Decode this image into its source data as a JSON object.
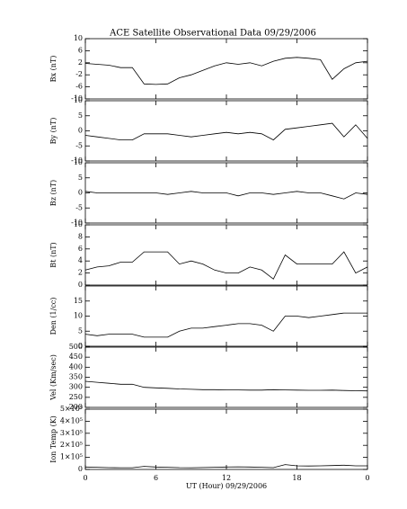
{
  "chart_data": [
    {
      "type": "line",
      "title": "ACE Satellite Observational Data   09/29/2006",
      "ylabel": "Bx (nT)",
      "color": "#000000",
      "ylim": [
        -10,
        10
      ],
      "yticks": [
        -10,
        -6,
        -2,
        2,
        6,
        10
      ],
      "values": [
        1.8,
        1.5,
        1.2,
        0.4,
        0.4,
        -5,
        -5.2,
        -5,
        -3,
        -2,
        -0.5,
        1,
        2,
        1.5,
        2,
        1,
        2.5,
        3.5,
        3.8,
        3.5,
        3,
        -3.5,
        0,
        2,
        2.5
      ]
    },
    {
      "type": "line",
      "ylabel": "By (nT)",
      "color": "#000000",
      "ylim": [
        -10,
        10
      ],
      "yticks": [
        -10,
        -5,
        0,
        5,
        10
      ],
      "values": [
        -1.5,
        -2,
        -2.5,
        -3,
        -3,
        -1,
        -1,
        -1,
        -1.5,
        -2,
        -1.5,
        -1,
        -0.5,
        -1,
        -0.5,
        -1,
        -3,
        0.5,
        1,
        1.5,
        2,
        2.5,
        -2,
        2,
        -2.5
      ]
    },
    {
      "type": "line",
      "ylabel": "Bz (nT)",
      "color": "#000000",
      "ylim": [
        -10,
        10
      ],
      "yticks": [
        -10,
        -5,
        0,
        5,
        10
      ],
      "values": [
        0.5,
        0,
        0,
        0,
        0,
        0,
        0,
        -0.5,
        0,
        0.5,
        0,
        0,
        0,
        -1,
        0,
        0,
        -0.5,
        0,
        0.5,
        0,
        0,
        -1,
        -2,
        0,
        -0.5
      ]
    },
    {
      "type": "line",
      "ylabel": "Bt (nT)",
      "color": "#000000",
      "ylim": [
        0,
        10
      ],
      "yticks": [
        0,
        2,
        4,
        6,
        8,
        10
      ],
      "values": [
        2.5,
        3,
        3.2,
        3.8,
        3.8,
        5.5,
        5.5,
        5.5,
        3.5,
        4,
        3.5,
        2.5,
        2,
        2,
        3,
        2.5,
        1,
        5,
        3.5,
        3.5,
        3.5,
        3.5,
        5.5,
        2,
        3
      ]
    },
    {
      "type": "line",
      "ylabel": "Den (1/cc)",
      "color": "#000000",
      "ylim": [
        0,
        20
      ],
      "yticks": [
        0,
        5,
        10,
        15
      ],
      "values": [
        4,
        3.5,
        4,
        4,
        4,
        3,
        3,
        3,
        5,
        6,
        6,
        6.5,
        7,
        7.5,
        7.5,
        7,
        5,
        10,
        10,
        9.5,
        10,
        10.5,
        11,
        11,
        11
      ]
    },
    {
      "type": "line",
      "ylabel": "Vel (Km/sec)",
      "color": "#000000",
      "ylim": [
        200,
        500
      ],
      "yticks": [
        200,
        250,
        300,
        350,
        400,
        450,
        500
      ],
      "values": [
        330,
        325,
        320,
        315,
        315,
        300,
        297,
        295,
        292,
        290,
        288,
        288,
        287,
        287,
        286,
        286,
        288,
        287,
        286,
        285,
        285,
        286,
        284,
        283,
        282
      ]
    },
    {
      "type": "line",
      "ylabel": "Ion Temp (K)",
      "xlabel": "UT (Hour)   09/29/2006",
      "color": "#000000",
      "ylim": [
        0,
        500000
      ],
      "yticks": [
        0,
        {
          "value": 100000,
          "label": "1×10⁵"
        },
        {
          "value": 200000,
          "label": "2×10⁵"
        },
        {
          "value": 300000,
          "label": "3×10⁵"
        },
        {
          "value": 400000,
          "label": "4×10⁵"
        },
        {
          "value": 500000,
          "label": "5×10⁵"
        }
      ],
      "xlim": [
        0,
        24
      ],
      "xticks": [
        0,
        6,
        12,
        18,
        {
          "value": 24,
          "label": "0"
        }
      ],
      "x": [
        0,
        1,
        2,
        3,
        4,
        5,
        6,
        7,
        8,
        9,
        10,
        11,
        12,
        13,
        14,
        15,
        16,
        17,
        18,
        19,
        20,
        21,
        22,
        23,
        24
      ],
      "values": [
        20000,
        18000,
        15000,
        14000,
        14000,
        25000,
        20000,
        18000,
        15000,
        14000,
        16000,
        18000,
        20000,
        22000,
        20000,
        18000,
        15000,
        40000,
        30000,
        28000,
        30000,
        32000,
        35000,
        30000,
        30000
      ]
    }
  ]
}
